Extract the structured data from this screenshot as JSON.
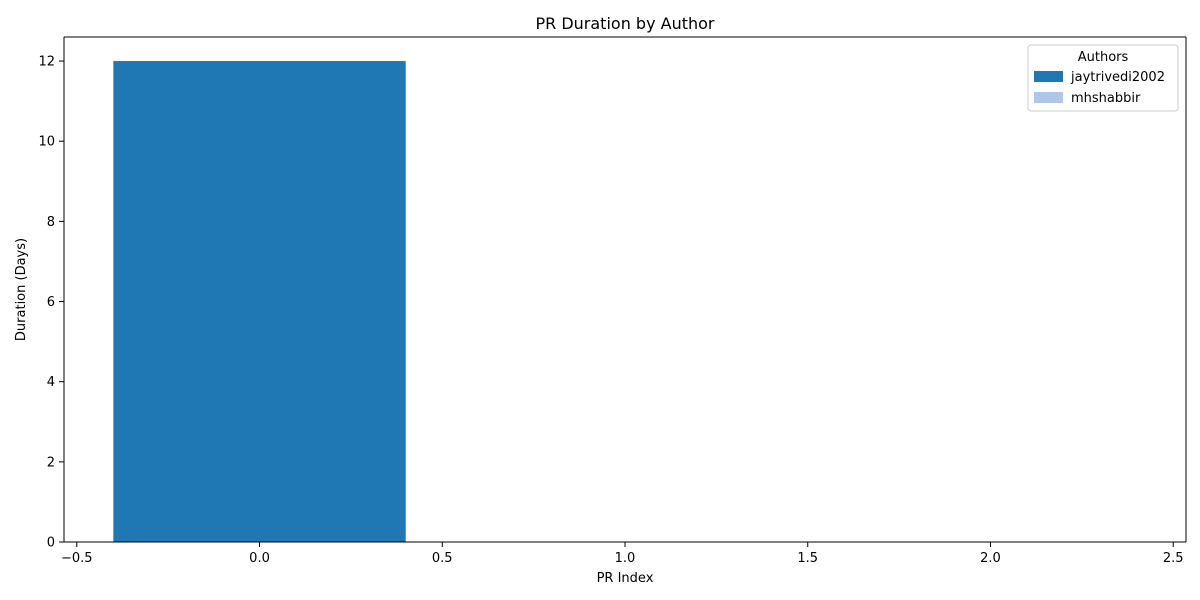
{
  "chart_data": {
    "type": "bar",
    "title": "PR Duration by Author",
    "xlabel": "PR Index",
    "ylabel": "Duration (Days)",
    "xlim": [
      -0.535,
      2.535
    ],
    "ylim": [
      0,
      12.6
    ],
    "x_ticks": [
      -0.5,
      0.0,
      0.5,
      1.0,
      1.5,
      2.0,
      2.5
    ],
    "x_tick_labels": [
      "−0.5",
      "0.0",
      "0.5",
      "1.0",
      "1.5",
      "2.0",
      "2.5"
    ],
    "y_ticks": [
      0,
      2,
      4,
      6,
      8,
      10,
      12
    ],
    "y_tick_labels": [
      "0",
      "2",
      "4",
      "6",
      "8",
      "10",
      "12"
    ],
    "bar_width": 0.8,
    "bars": [
      {
        "x": 0,
        "value": 12,
        "author": "jaytrivedi2002"
      }
    ],
    "legend": {
      "title": "Authors",
      "placement": "top-right",
      "entries": [
        {
          "label": "jaytrivedi2002",
          "color": "#1f77b4"
        },
        {
          "label": "mhshabbir",
          "color": "#aec7e8"
        }
      ]
    },
    "grid": false
  }
}
